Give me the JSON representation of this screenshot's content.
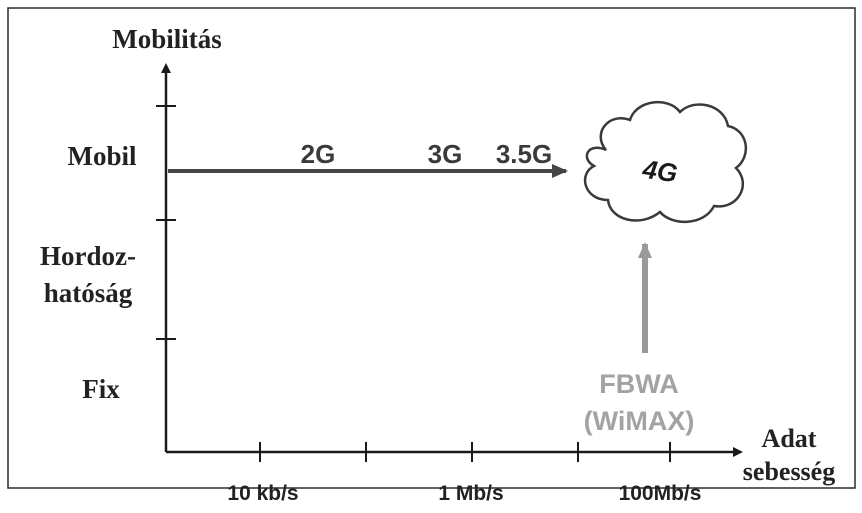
{
  "y_axis": {
    "title": "Mobilitás",
    "levels": [
      "Mobil",
      "Hordoz-",
      "hatóság",
      "Fix"
    ]
  },
  "x_axis": {
    "title_line1": "Adat",
    "title_line2": "sebesség",
    "ticks": [
      "10 kb/s",
      "1 Mb/s",
      "100Mb/s"
    ]
  },
  "mobile_arrow": {
    "labels": [
      "2G",
      "3G",
      "3.5G"
    ]
  },
  "cloud": {
    "label": "4G"
  },
  "fbwa": {
    "line1": "FBWA",
    "line2": "(WiMAX)"
  },
  "colors": {
    "axis": "#1a1a1a",
    "mobile_arrow": "#454545",
    "fbwa_arrow": "#9a9a9a",
    "fbwa_text": "#a3a3a3",
    "labels": "#3a3a3a"
  }
}
